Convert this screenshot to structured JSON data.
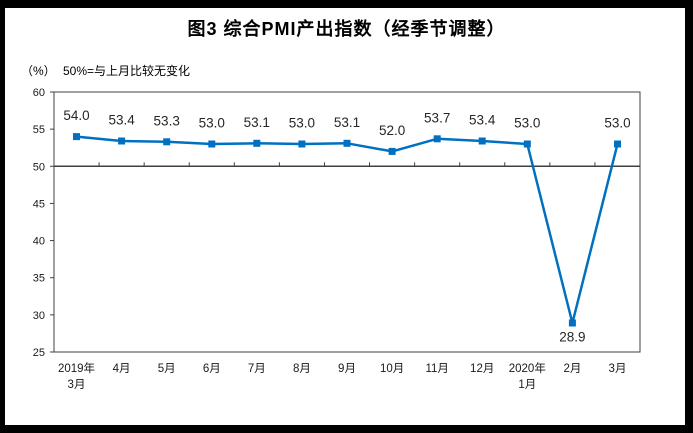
{
  "title": "图3 综合PMI产出指数（经季节调整）",
  "axis_note": "（%）",
  "subtitle": "50%=与上月比较无变化",
  "chart_data": {
    "type": "line",
    "title": "图3 综合PMI产出指数（经季节调整）",
    "subtitle": "50%=与上月比较无变化",
    "unit": "%",
    "categories": [
      "2019年\n3月",
      "4月",
      "5月",
      "6月",
      "7月",
      "8月",
      "9月",
      "10月",
      "11月",
      "12月",
      "2020年\n1月",
      "2月",
      "3月"
    ],
    "values": [
      54.0,
      53.4,
      53.3,
      53.0,
      53.1,
      53.0,
      53.1,
      52.0,
      53.7,
      53.4,
      53.0,
      28.9,
      53.0
    ],
    "labels": [
      "54.0",
      "53.4",
      "53.3",
      "53.0",
      "53.1",
      "53.0",
      "53.1",
      "52.0",
      "53.7",
      "53.4",
      "53.0",
      "28.9",
      "53.0"
    ],
    "yticks": [
      25,
      30,
      35,
      40,
      45,
      50,
      55,
      60
    ],
    "ylim": [
      25,
      60
    ],
    "baseline": 50,
    "grid": false,
    "legend": "none",
    "marker": "square",
    "line_color": "#0070C0",
    "axis_color": "#404040",
    "text_color": "#262626"
  }
}
